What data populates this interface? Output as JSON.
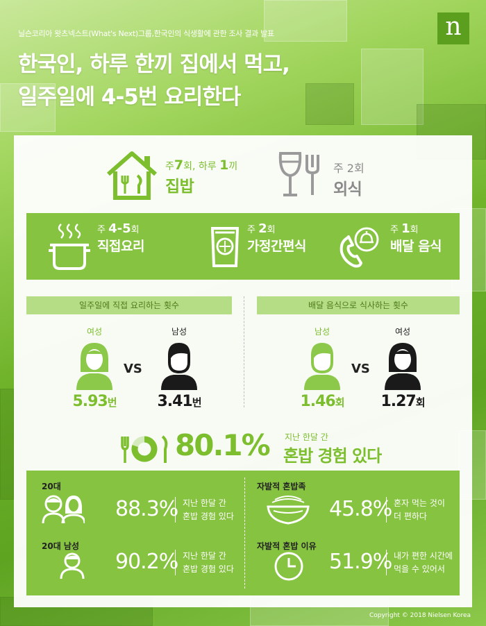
{
  "header": {
    "subtitle": "닐슨코리아 왓츠넥스트(What's Next)그룹,한국인의 식생활에 관한 조사 결과 발표",
    "title_line1": "한국인, 하루 한끼 집에서 먹고,",
    "title_line2": "일주일에 4-5번 요리한다",
    "logo": "n"
  },
  "top": {
    "home": {
      "freq_prefix": "주",
      "freq_num": "7",
      "freq_suffix": "회, 하루",
      "freq_num2": "1",
      "freq_suffix2": "끼",
      "label": "집밥",
      "icon": "house-fork-knife-icon"
    },
    "out": {
      "freq": "주 2회",
      "label": "외식",
      "icon": "wine-fork-icon"
    }
  },
  "band": {
    "items": [
      {
        "prefix": "주",
        "num": "4-5",
        "suffix": "회",
        "label": "직접요리",
        "icon": "pot-icon"
      },
      {
        "prefix": "주",
        "num": "2",
        "suffix": "회",
        "label": "가정간편식",
        "icon": "packaged-meal-icon"
      },
      {
        "prefix": "주",
        "num": "1",
        "suffix": "회",
        "label": "배달 음식",
        "icon": "phone-delivery-icon"
      }
    ]
  },
  "cooking": {
    "title": "일주일에 직접 요리하는 횟수",
    "left": {
      "gender": "여성",
      "value": "5.93",
      "unit": "번"
    },
    "vs": "VS",
    "right": {
      "gender": "남성",
      "value": "3.41",
      "unit": "번"
    }
  },
  "delivery": {
    "title": "배달 음식으로 식사하는 횟수",
    "left": {
      "gender": "남성",
      "value": "1.46",
      "unit": "회"
    },
    "vs": "VS",
    "right": {
      "gender": "여성",
      "value": "1.27",
      "unit": "회"
    }
  },
  "solo": {
    "pct": "80.1%",
    "pct_value": 80.1,
    "line1": "지난 한달 간",
    "line2": "혼밥 경험 있다"
  },
  "bottom": {
    "items": [
      {
        "label": "20대",
        "pct": "88.3%",
        "desc1": "지난 한달 간",
        "desc2": "혼밥 경험 있다",
        "icon": "two-people-icon"
      },
      {
        "label": "20대 남성",
        "pct": "90.2%",
        "desc1": "지난 한달 간",
        "desc2": "혼밥 경험 있다",
        "icon": "man-icon"
      },
      {
        "label": "자발적 혼밥족",
        "pct": "45.8%",
        "desc1": "혼자 먹는 것이",
        "desc2": "더 편하다",
        "icon": "noodle-bowl-icon"
      },
      {
        "label": "자발적 혼밥 이유",
        "pct": "51.9%",
        "desc1": "내가 편한 시간에",
        "desc2": "먹을 수 있어서",
        "icon": "clock-icon"
      }
    ]
  },
  "copyright": "Copyright © 2018 Nielsen Korea",
  "colors": {
    "accent": "#7cbe2e",
    "band": "#86c340",
    "pill": "#b5dd85",
    "dark": "#1a1a1a"
  }
}
